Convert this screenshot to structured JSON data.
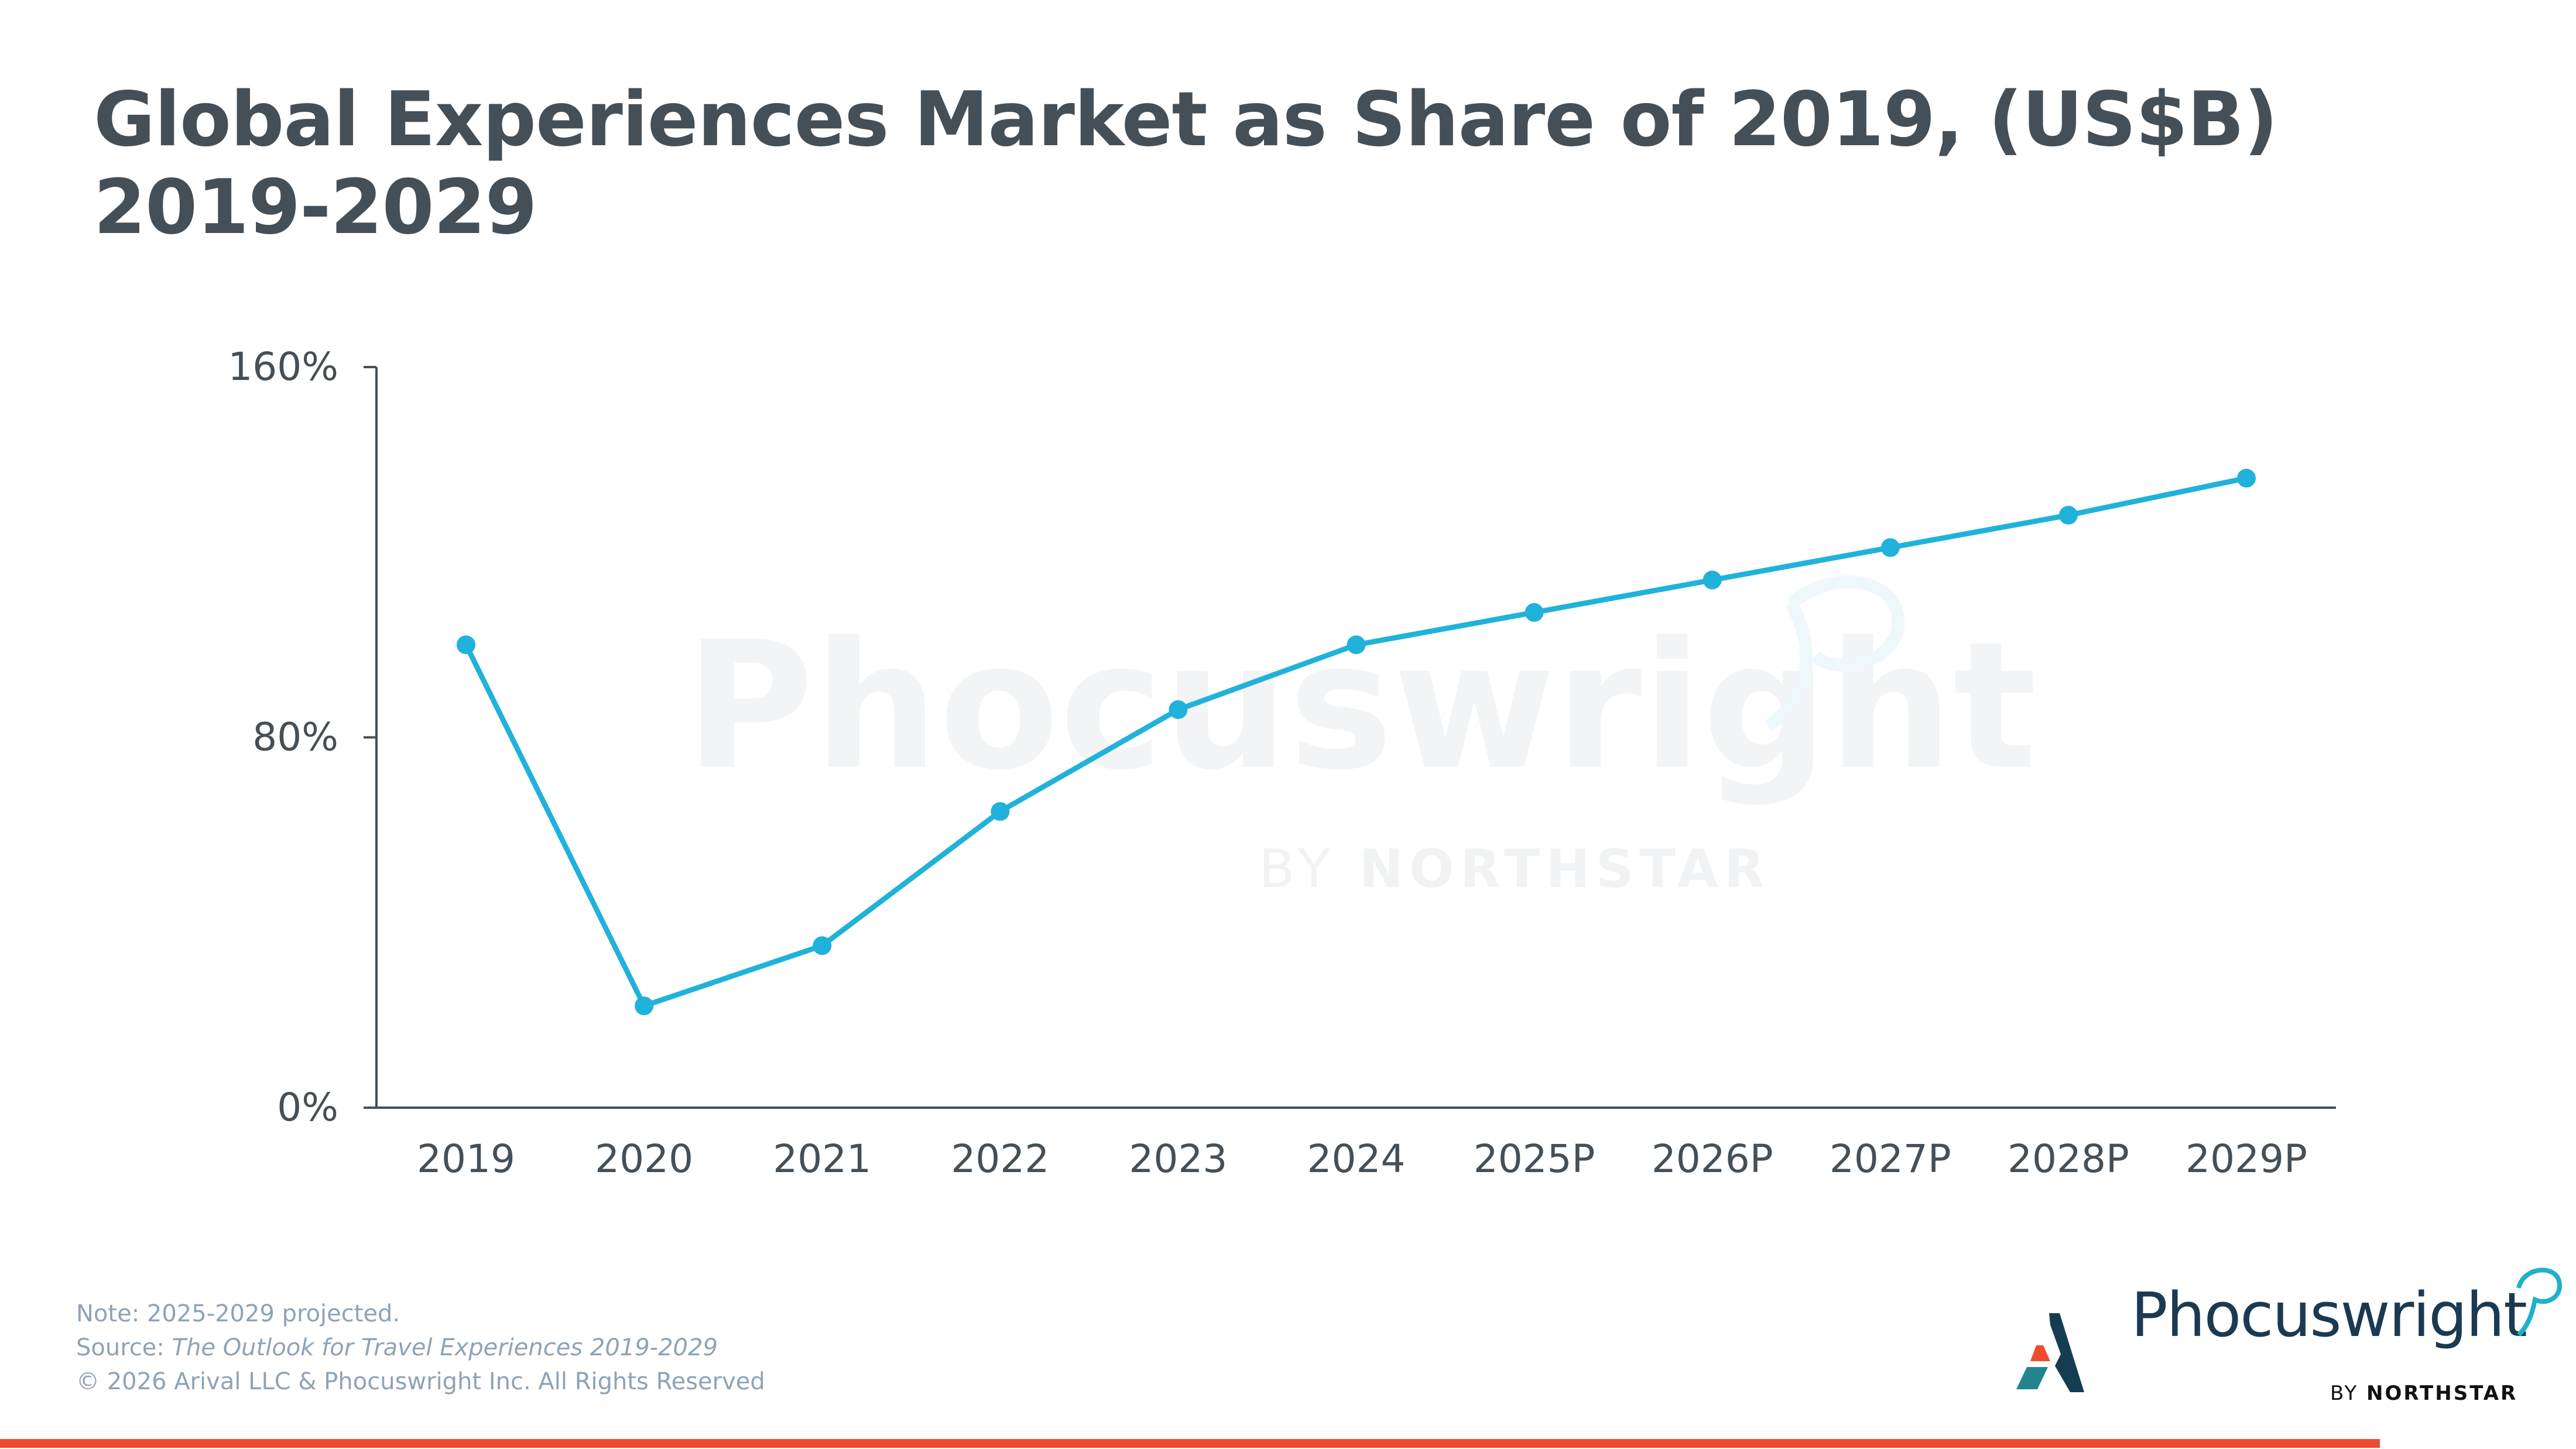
{
  "title": {
    "line1": "Global Experiences Market as Share of 2019, (US$B)",
    "line2": "2019-2029"
  },
  "watermark": {
    "main": "Phocuswright",
    "sub_prefix": "BY",
    "sub_brand": "NORTHSTAR"
  },
  "chart_data": {
    "type": "line",
    "title": "Global Experiences Market as Share of 2019, (US$B) 2019-2029",
    "xlabel": "",
    "ylabel": "",
    "categories": [
      "2019",
      "2020",
      "2021",
      "2022",
      "2023",
      "2024",
      "2025P",
      "2026P",
      "2027P",
      "2028P",
      "2029P"
    ],
    "series": [
      {
        "name": "Share of 2019",
        "values": [
          100,
          22,
          35,
          64,
          86,
          100,
          107,
          114,
          121,
          128,
          136
        ],
        "color": "#20b2da",
        "markers": true
      }
    ],
    "ylim": [
      0,
      160
    ],
    "yticks": [
      0,
      80,
      160
    ],
    "ytick_labels": [
      "0%",
      "80%",
      "160%"
    ],
    "grid": false,
    "legend": "none"
  },
  "footer": {
    "note": "Note: 2025-2029 projected.",
    "source_label": "Source:",
    "source_title": "The Outlook for Travel Experiences 2019-2029",
    "copyright": "© 2026 Arival LLC & Phocuswright Inc. All Rights Reserved"
  },
  "logo": {
    "wordmark": "Phocuswright",
    "by": "BY",
    "brand": "NORTHSTAR",
    "icon": "northstar-a-icon"
  },
  "colors": {
    "title": "#454f57",
    "axis": "#454f57",
    "line": "#20b2da",
    "footer_text": "#8ea3b6",
    "logo_navy": "#1b3a52",
    "logo_cyan": "#1fb0cc",
    "accent_bar": "#ef4b2e"
  }
}
